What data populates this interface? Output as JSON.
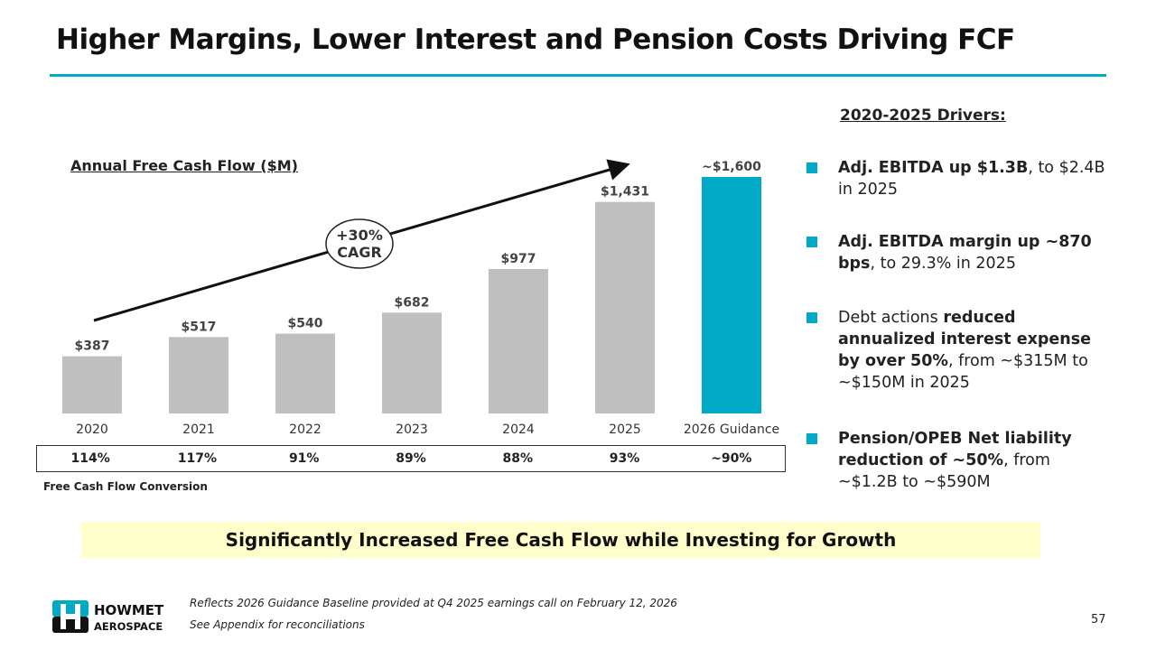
{
  "title": "Higher Margins, Lower Interest and Pension Costs Driving FCF",
  "chart_data": {
    "type": "bar",
    "title": "Annual Free Cash Flow ($M)",
    "categories": [
      "2020",
      "2021",
      "2022",
      "2023",
      "2024",
      "2025",
      "2026 Guidance"
    ],
    "values": [
      387,
      517,
      540,
      682,
      977,
      1431,
      1600
    ],
    "data_labels": [
      "$387",
      "$517",
      "$540",
      "$682",
      "$977",
      "$1,431",
      "~$1,600"
    ],
    "colors": [
      "#bfbfbf",
      "#bfbfbf",
      "#bfbfbf",
      "#bfbfbf",
      "#bfbfbf",
      "#bfbfbf",
      "#00a9c6"
    ],
    "annotation": {
      "line1": "+30%",
      "line2": "CAGR"
    },
    "ylim": [
      0,
      1600
    ],
    "conversion_label": "Free Cash Flow Conversion",
    "conversion": [
      "114%",
      "117%",
      "91%",
      "89%",
      "88%",
      "93%",
      "~90%"
    ]
  },
  "drivers": {
    "title": "2020-2025 Drivers:",
    "items": [
      {
        "bold": "Adj. EBITDA up $1.3B",
        "rest": ", to $2.4B in 2025"
      },
      {
        "bold": "Adj. EBITDA margin up ~870 bps",
        "rest": ", to 29.3% in 2025"
      },
      {
        "pre": "Debt actions ",
        "bold": "reduced annualized interest expense by over 50%",
        "rest": ", from ~$315M to ~$150M in 2025"
      },
      {
        "bold": "Pension/OPEB Net liability reduction of ~50%",
        "rest": ", from ~$1.2B to ~$590M"
      }
    ]
  },
  "banner": "Significantly Increased Free Cash Flow while Investing for Growth",
  "footnotes": [
    "Reflects 2026 Guidance Baseline provided at Q4 2025 earnings call on February 12, 2026",
    "See Appendix for reconciliations"
  ],
  "logo": {
    "line1": "HOWMET",
    "line2": "AEROSPACE"
  },
  "page_number": "57"
}
